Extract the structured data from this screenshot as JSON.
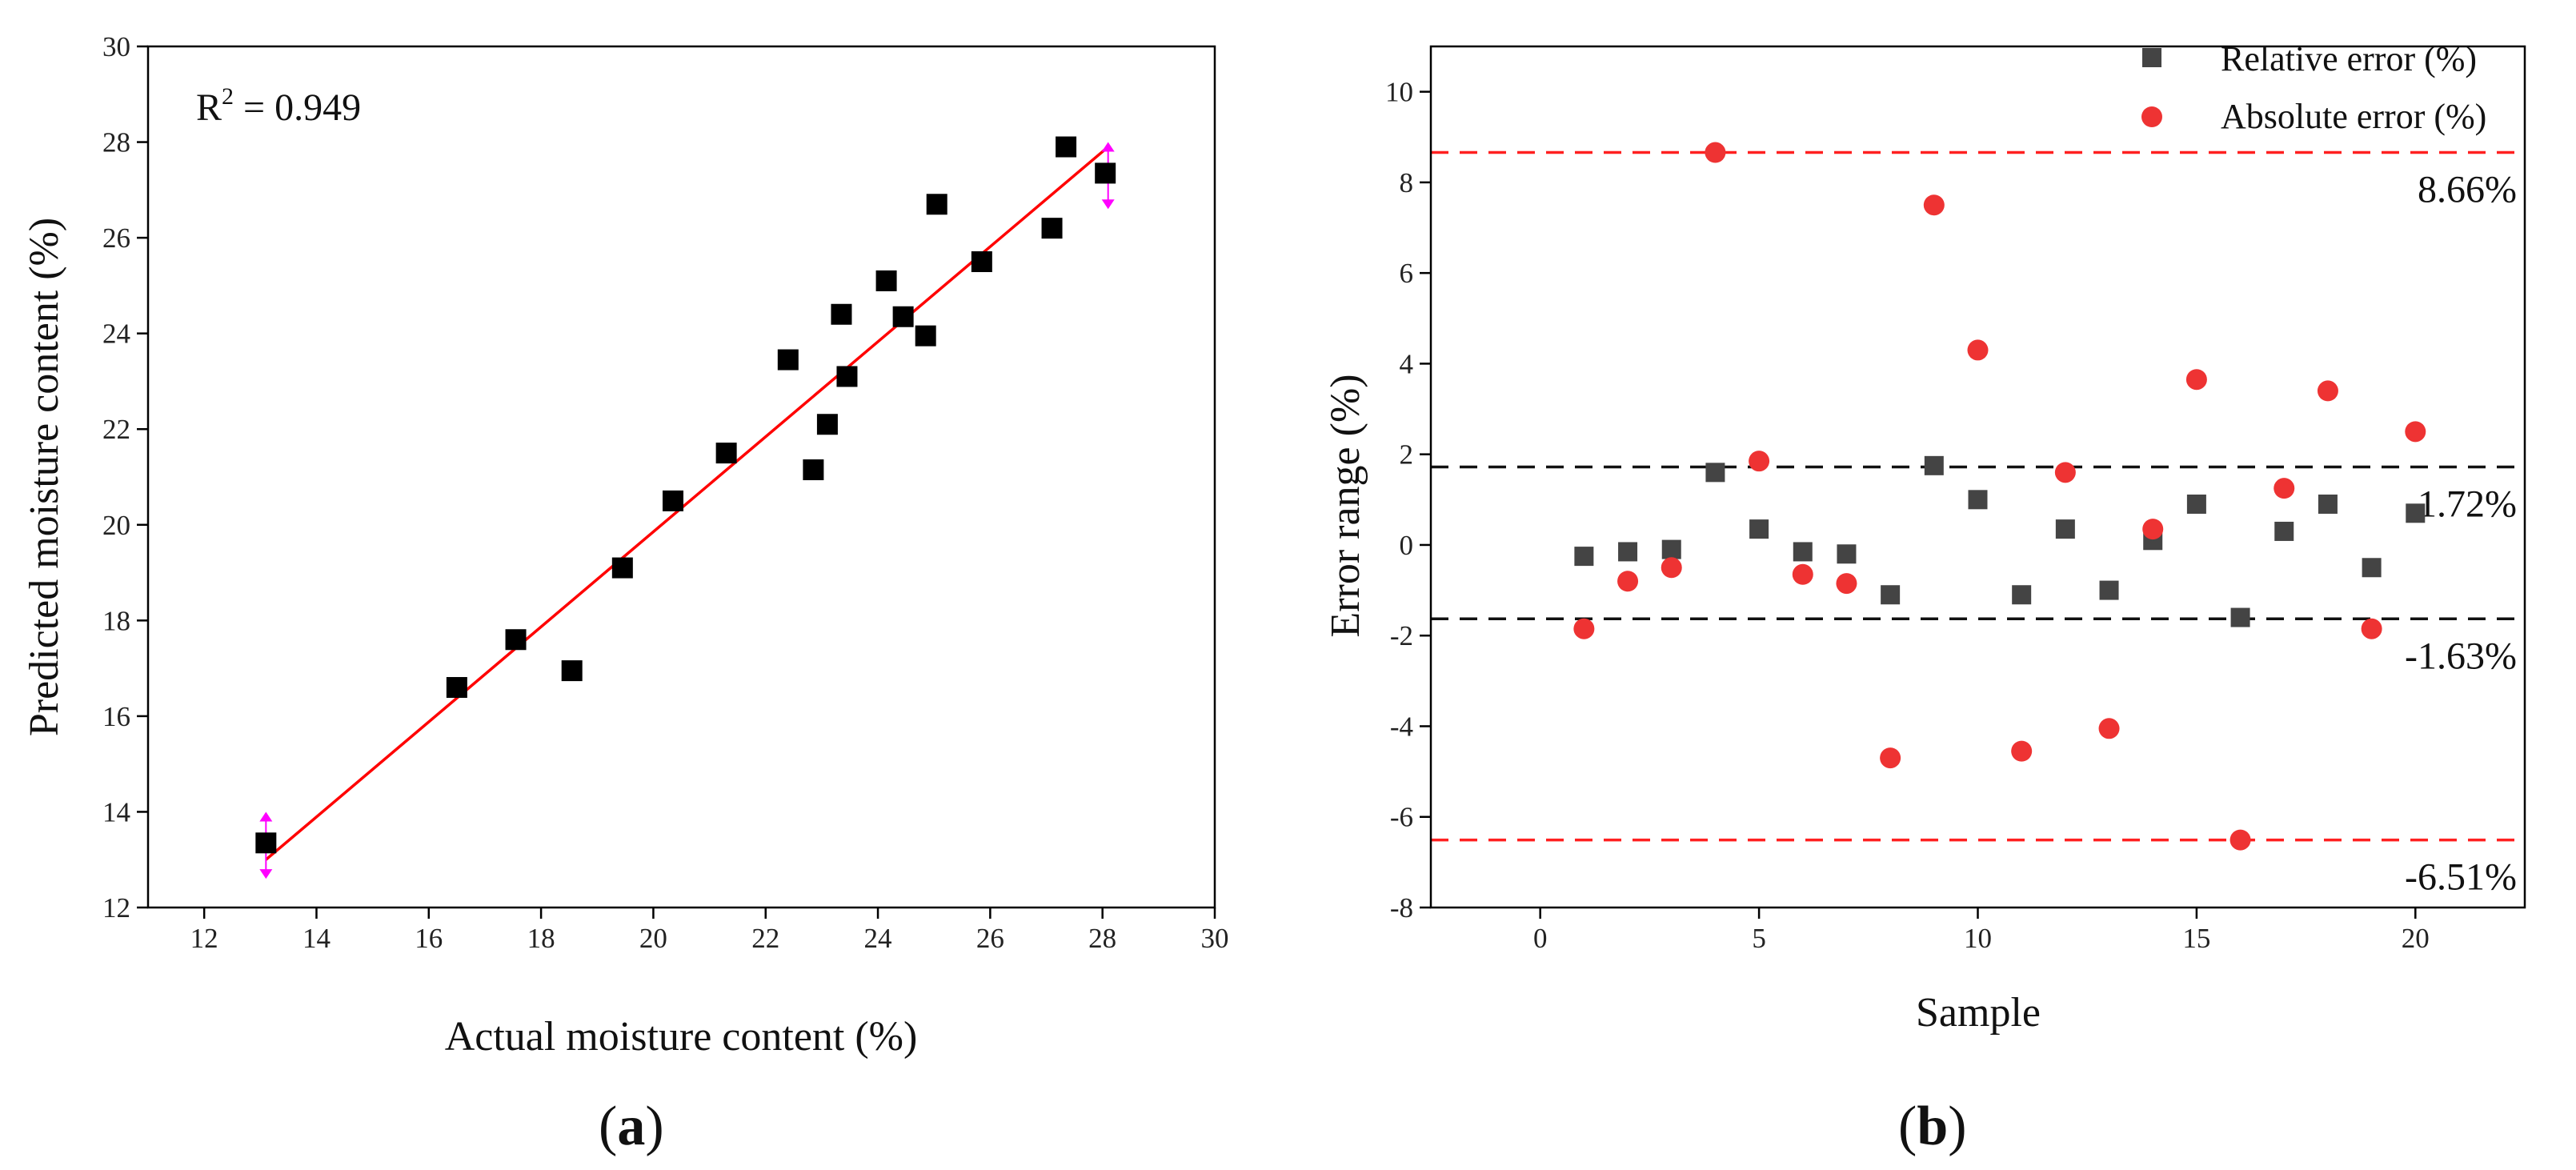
{
  "chart_data": [
    {
      "type": "scatter",
      "panel_label": "a",
      "xlabel": "Actual moisture content (%)",
      "ylabel": "Predicted moisture content (%)",
      "xlim": [
        11,
        30
      ],
      "ylim": [
        12,
        30
      ],
      "xticks": [
        12,
        14,
        16,
        18,
        20,
        22,
        24,
        26,
        28,
        30
      ],
      "yticks": [
        12,
        14,
        16,
        18,
        20,
        22,
        24,
        26,
        28,
        30
      ],
      "annotation": {
        "prefix": "R",
        "superscript": "2",
        "suffix": " = 0.949"
      },
      "marker_color": "#000000",
      "fit_line_color": "#ff0000",
      "fit_line": {
        "x": [
          13.1,
          28.1
        ],
        "y": [
          13.0,
          27.9
        ]
      },
      "range_markers": [
        {
          "x": 13.1,
          "y_low": 12.6,
          "y_high": 14.0,
          "color": "#ff00ff"
        },
        {
          "x": 28.1,
          "y_low": 26.6,
          "y_high": 28.0,
          "color": "#ff00ff"
        }
      ],
      "points": {
        "x": [
          13.1,
          16.5,
          17.55,
          18.55,
          19.45,
          20.35,
          21.3,
          22.4,
          22.85,
          23.1,
          23.35,
          23.45,
          24.15,
          24.45,
          24.85,
          25.05,
          25.85,
          27.1,
          27.35,
          28.05
        ],
        "y": [
          13.35,
          16.6,
          17.6,
          16.95,
          19.1,
          20.5,
          21.5,
          23.45,
          21.15,
          22.1,
          24.4,
          23.1,
          25.1,
          24.35,
          23.95,
          26.7,
          25.5,
          26.2,
          27.9,
          27.35
        ]
      }
    },
    {
      "type": "scatter",
      "panel_label": "b",
      "xlabel": "Sample",
      "ylabel": "Error range (%)",
      "xlim": [
        -2.5,
        22.5
      ],
      "ylim": [
        -8,
        11
      ],
      "xticks": [
        0,
        5,
        10,
        15,
        20
      ],
      "yticks": [
        -8,
        -6,
        -4,
        -2,
        0,
        2,
        4,
        6,
        8,
        10
      ],
      "legend_position": "top-right",
      "series": [
        {
          "name": "Relative error (%)",
          "marker": "square",
          "color": "#444444",
          "x": [
            1,
            2,
            3,
            4,
            5,
            6,
            7,
            8,
            9,
            10,
            11,
            12,
            13,
            14,
            15,
            16,
            17,
            18,
            19,
            20
          ],
          "y": [
            -0.25,
            -0.15,
            -0.1,
            1.6,
            0.35,
            -0.15,
            -0.2,
            -1.1,
            1.75,
            1.0,
            -1.1,
            0.35,
            -1.0,
            0.1,
            0.9,
            -1.6,
            0.3,
            0.9,
            -0.5,
            0.7
          ]
        },
        {
          "name": "Absolute error (%)",
          "marker": "circle",
          "color": "#ee3333",
          "x": [
            1,
            2,
            3,
            4,
            5,
            6,
            7,
            8,
            9,
            10,
            11,
            12,
            13,
            14,
            15,
            16,
            17,
            18,
            19,
            20
          ],
          "y": [
            -1.85,
            -0.8,
            -0.5,
            8.66,
            1.85,
            -0.65,
            -0.85,
            -4.7,
            7.5,
            4.3,
            -4.55,
            1.6,
            -4.05,
            0.35,
            3.65,
            -6.51,
            1.25,
            3.4,
            -1.85,
            2.5
          ]
        }
      ],
      "reference_lines": [
        {
          "y": 8.66,
          "label": "8.66%",
          "color": "#ff2020"
        },
        {
          "y": 1.72,
          "label": "1.72%",
          "color": "#111111"
        },
        {
          "y": -1.63,
          "label": "-1.63%",
          "color": "#111111"
        },
        {
          "y": -6.51,
          "label": "-6.51%",
          "color": "#ff2020"
        }
      ]
    }
  ]
}
